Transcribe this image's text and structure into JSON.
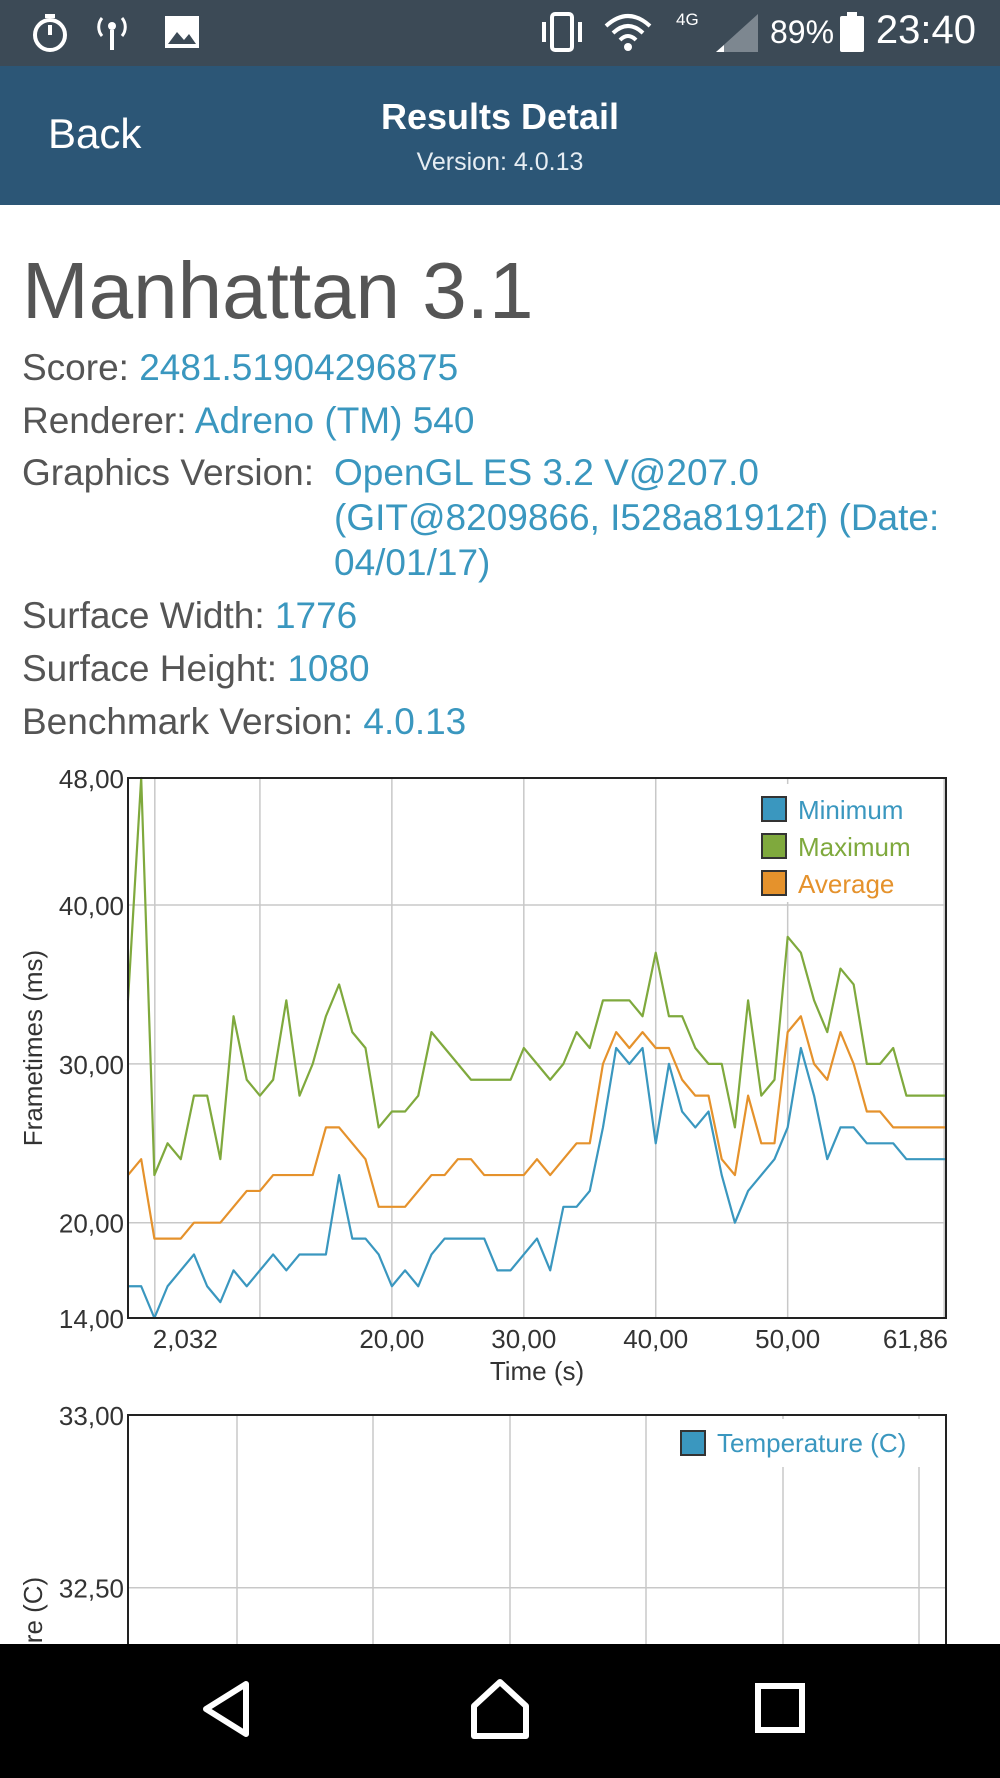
{
  "status_bar": {
    "battery": "89%",
    "network": "4G",
    "time": "23:40",
    "icons": [
      "stopwatch-icon",
      "hotspot-icon",
      "image-icon",
      "vibrate-icon",
      "wifi-icon",
      "signal-icon",
      "battery-icon"
    ]
  },
  "header": {
    "back_label": "Back",
    "title": "Results Detail",
    "subtitle": "Version: 4.0.13"
  },
  "benchmark": {
    "title": "Manhattan 3.1",
    "score_label": "Score:",
    "score_value": "2481.51904296875",
    "renderer_label": "Renderer:",
    "renderer_value": "Adreno (TM) 540",
    "graphics_label": "Graphics Version:",
    "graphics_value_1": "OpenGL ES 3.2 V@207.0",
    "graphics_value_2": "(GIT@8209866, I528a81912f) (Date:",
    "graphics_value_3": "04/01/17)",
    "width_label": "Surface Width:",
    "width_value": "1776",
    "height_label": "Surface Height:",
    "height_value": "1080",
    "version_label": "Benchmark Version:",
    "version_value": "4.0.13"
  },
  "colors": {
    "minimum": "#3a97bf",
    "maximum": "#7fa93d",
    "average": "#e5922c",
    "header": "#2c5676",
    "statusbar": "#3c4a56"
  },
  "chart_data": [
    {
      "type": "line",
      "xlabel": "Time (s)",
      "ylabel": "Frametimes (ms)",
      "xlim": [
        0,
        62
      ],
      "ylim": [
        14,
        48
      ],
      "x_ticks": [
        "2,032",
        "20,00",
        "30,00",
        "40,00",
        "50,00",
        "61,86"
      ],
      "y_ticks": [
        "14,00",
        "20,00",
        "30,00",
        "40,00",
        "48,00"
      ],
      "grid": true,
      "legend": "top-right",
      "series": [
        {
          "name": "Minimum",
          "color": "#3a97bf",
          "x": [
            0,
            1,
            2,
            3,
            4,
            5,
            6,
            7,
            8,
            9,
            10,
            11,
            12,
            13,
            14,
            15,
            16,
            17,
            18,
            19,
            20,
            21,
            22,
            23,
            24,
            25,
            26,
            27,
            28,
            29,
            30,
            31,
            32,
            33,
            34,
            35,
            36,
            37,
            38,
            39,
            40,
            41,
            42,
            43,
            44,
            45,
            46,
            47,
            48,
            49,
            50,
            51,
            52,
            53,
            54,
            55,
            56,
            57,
            58,
            59,
            60,
            61,
            62
          ],
          "values": [
            16,
            16,
            14,
            16,
            17,
            18,
            16,
            15,
            17,
            16,
            17,
            18,
            17,
            18,
            18,
            18,
            23,
            19,
            19,
            18,
            16,
            17,
            16,
            18,
            19,
            19,
            19,
            19,
            17,
            17,
            18,
            19,
            17,
            21,
            21,
            22,
            26,
            31,
            30,
            31,
            25,
            30,
            27,
            26,
            27,
            23,
            20,
            22,
            23,
            24,
            26,
            31,
            28,
            24,
            26,
            26,
            25,
            25,
            25,
            24,
            24,
            24,
            24
          ]
        },
        {
          "name": "Maximum",
          "color": "#7fa93d",
          "x": [
            0,
            1,
            2,
            3,
            4,
            5,
            6,
            7,
            8,
            9,
            10,
            11,
            12,
            13,
            14,
            15,
            16,
            17,
            18,
            19,
            20,
            21,
            22,
            23,
            24,
            25,
            26,
            27,
            28,
            29,
            30,
            31,
            32,
            33,
            34,
            35,
            36,
            37,
            38,
            39,
            40,
            41,
            42,
            43,
            44,
            45,
            46,
            47,
            48,
            49,
            50,
            51,
            52,
            53,
            54,
            55,
            56,
            57,
            58,
            59,
            60,
            61,
            62
          ],
          "values": [
            34,
            48,
            23,
            25,
            24,
            28,
            28,
            24,
            33,
            29,
            28,
            29,
            34,
            28,
            30,
            33,
            35,
            32,
            31,
            26,
            27,
            27,
            28,
            32,
            31,
            30,
            29,
            29,
            29,
            29,
            31,
            30,
            29,
            30,
            32,
            31,
            34,
            34,
            34,
            33,
            37,
            33,
            33,
            31,
            30,
            30,
            26,
            34,
            28,
            29,
            38,
            37,
            34,
            32,
            36,
            35,
            30,
            30,
            31,
            28,
            28,
            28,
            28
          ]
        },
        {
          "name": "Average",
          "color": "#e5922c",
          "x": [
            0,
            1,
            2,
            3,
            4,
            5,
            6,
            7,
            8,
            9,
            10,
            11,
            12,
            13,
            14,
            15,
            16,
            17,
            18,
            19,
            20,
            21,
            22,
            23,
            24,
            25,
            26,
            27,
            28,
            29,
            30,
            31,
            32,
            33,
            34,
            35,
            36,
            37,
            38,
            39,
            40,
            41,
            42,
            43,
            44,
            45,
            46,
            47,
            48,
            49,
            50,
            51,
            52,
            53,
            54,
            55,
            56,
            57,
            58,
            59,
            60,
            61,
            62
          ],
          "values": [
            23,
            24,
            19,
            19,
            19,
            20,
            20,
            20,
            21,
            22,
            22,
            23,
            23,
            23,
            23,
            26,
            26,
            25,
            24,
            21,
            21,
            21,
            22,
            23,
            23,
            24,
            24,
            23,
            23,
            23,
            23,
            24,
            23,
            24,
            25,
            25,
            30,
            32,
            31,
            32,
            31,
            31,
            29,
            28,
            28,
            24,
            23,
            28,
            25,
            25,
            32,
            33,
            30,
            29,
            32,
            30,
            27,
            27,
            26,
            26,
            26,
            26,
            26
          ]
        }
      ]
    },
    {
      "type": "line",
      "ylabel": "re (C)",
      "ylim": [
        32.45,
        33.0
      ],
      "y_ticks": [
        "32,50",
        "33,00"
      ],
      "grid": true,
      "legend": "top-right",
      "series": [
        {
          "name": "Temperature (C)",
          "color": "#3a97bf",
          "values": []
        }
      ]
    }
  ]
}
